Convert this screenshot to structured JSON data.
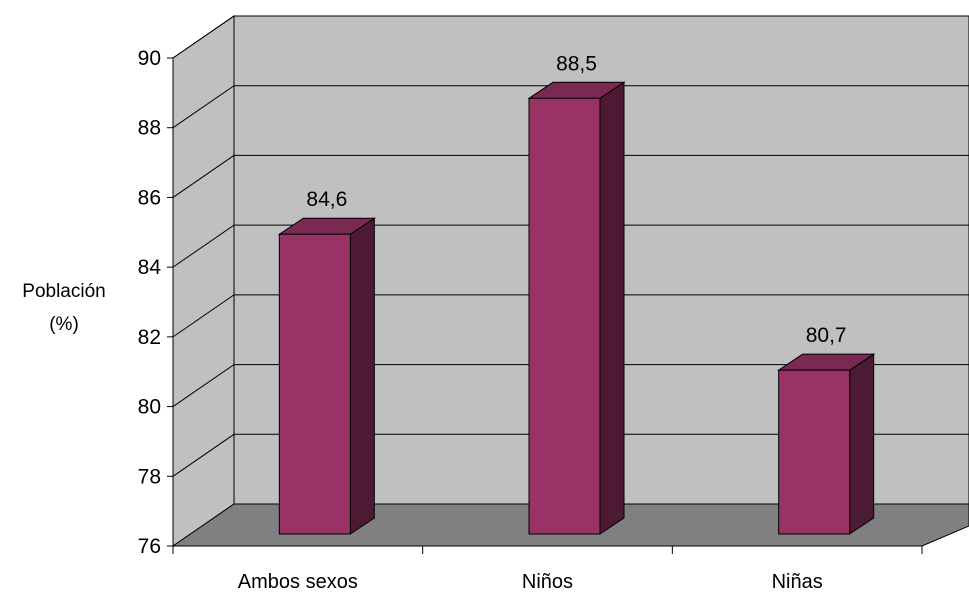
{
  "chart_data": {
    "type": "bar",
    "categories": [
      "Ambos sexos",
      "Niños",
      "Niñas"
    ],
    "values": [
      84.6,
      88.5,
      80.7
    ],
    "data_labels": [
      "84,6",
      "88,5",
      "80,7"
    ],
    "title": "",
    "xlabel": "",
    "ylabel": [
      "Población",
      "(%)"
    ],
    "ylim": [
      76,
      90
    ],
    "yticks": [
      "76",
      "78",
      "80",
      "82",
      "84",
      "86",
      "88",
      "90"
    ],
    "grid": true,
    "legend": "none",
    "style": "3d-column"
  },
  "colors": {
    "wall": "#c0c0c0",
    "floor": "#808080",
    "bar_front": "#993366",
    "bar_side": "#4d1a33",
    "bar_top": "#7a2952",
    "grid": "#000000"
  }
}
